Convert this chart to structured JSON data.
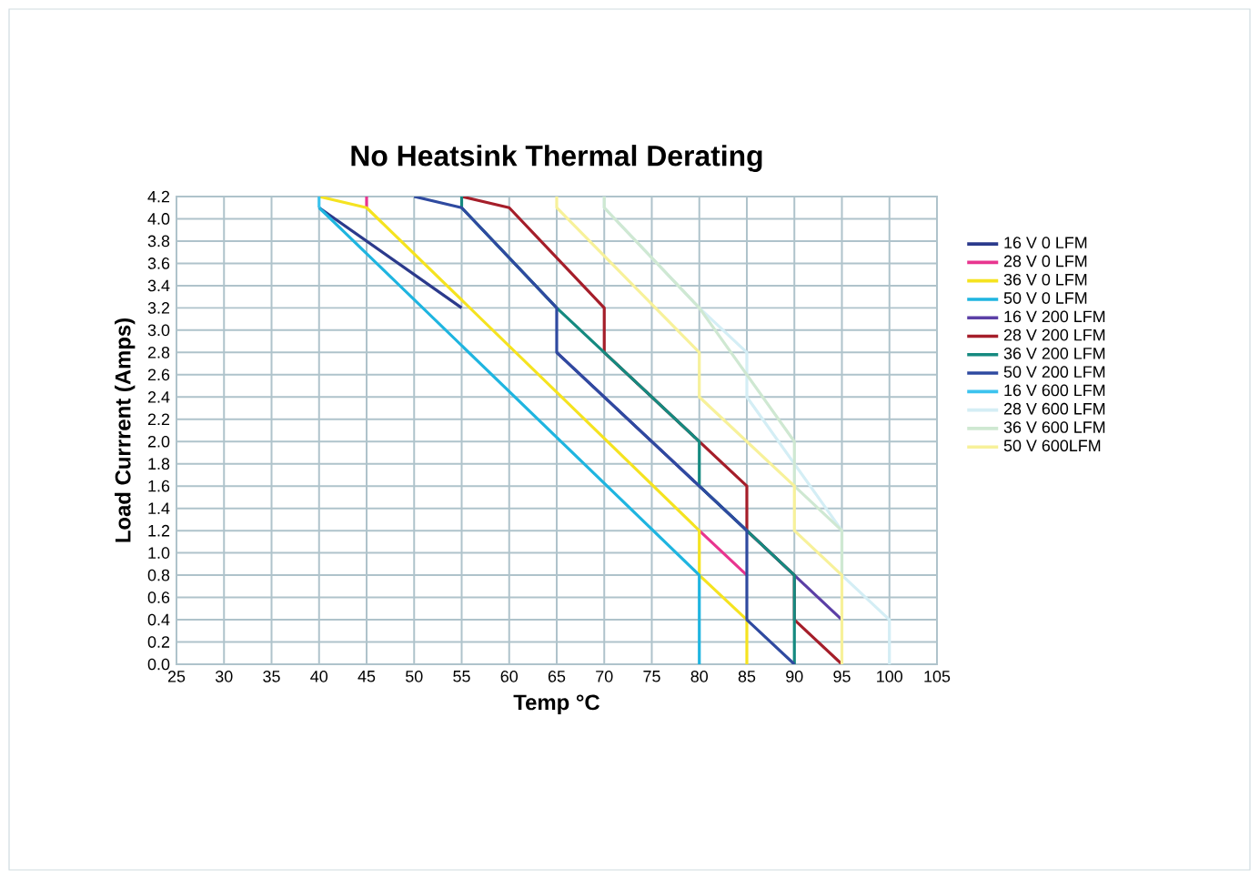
{
  "chart_data": {
    "type": "line",
    "title": "No Heatsink Thermal Derating",
    "xlabel": "Temp °C",
    "ylabel": "Load Currrent (Amps)",
    "xlim": [
      25,
      105
    ],
    "xticks": [
      25,
      30,
      35,
      40,
      45,
      50,
      55,
      60,
      65,
      70,
      75,
      80,
      85,
      90,
      95,
      100,
      105
    ],
    "ylim": [
      0,
      4.2
    ],
    "yticks": [
      {
        "value": 0,
        "label": "0.0"
      },
      0.2,
      0.4,
      0.6,
      0.8,
      {
        "value": 1,
        "label": "1.0"
      },
      1.2,
      1.4,
      1.6,
      1.8,
      {
        "value": 2,
        "label": "2.0"
      },
      2.2,
      2.4,
      2.6,
      2.8,
      {
        "value": 3,
        "label": "3.0"
      },
      3.2,
      3.4,
      3.6,
      3.8,
      {
        "value": 4,
        "label": "4.0"
      },
      4.2
    ],
    "grid": true,
    "legend": "right",
    "marker": "none",
    "line_style": "solid",
    "series": [
      {
        "name": "16 V 0 LFM",
        "color": "#2b3a8c",
        "x": [
          40,
          55
        ],
        "values": [
          4.1,
          3.2
        ]
      },
      {
        "name": "28 V 0 LFM",
        "color": "#e8358f",
        "x": [
          45,
          45,
          60,
          80,
          85
        ],
        "values": [
          4.2,
          4.1,
          null,
          1.2,
          0.8
        ]
      },
      {
        "name": "36 V 0 LFM",
        "color": "#f5e320",
        "x": [
          40,
          45,
          80,
          80,
          85,
          85
        ],
        "values": [
          4.2,
          4.1,
          1.2,
          0.8,
          0.4,
          0
        ]
      },
      {
        "name": "50 V 0 LFM",
        "color": "#1fb5e0",
        "x": [
          40,
          80,
          80
        ],
        "values": [
          4.1,
          0.8,
          0
        ]
      },
      {
        "name": "16 V 200 LFM",
        "color": "#5b3fa6",
        "x": [
          65,
          85,
          90,
          95
        ],
        "values": [
          2.8,
          1.2,
          0.8,
          0.4
        ]
      },
      {
        "name": "28 V 200 LFM",
        "color": "#a51e2a",
        "x": [
          55,
          60,
          70,
          70,
          80,
          85,
          85,
          90,
          90,
          95
        ],
        "values": [
          4.2,
          4.1,
          3.2,
          2.8,
          2.0,
          1.6,
          1.2,
          0.8,
          0.4,
          0
        ]
      },
      {
        "name": "36 V 200 LFM",
        "color": "#158a80",
        "x": [
          55,
          55,
          65,
          80,
          80,
          85,
          90,
          90
        ],
        "values": [
          4.2,
          4.1,
          3.2,
          2.0,
          1.6,
          1.2,
          0.8,
          0
        ]
      },
      {
        "name": "50 V 200 LFM",
        "color": "#2f4aa0",
        "x": [
          50,
          55,
          65,
          65,
          85,
          85,
          90
        ],
        "values": [
          4.2,
          4.1,
          3.2,
          2.8,
          1.2,
          0.4,
          0
        ]
      },
      {
        "name": "16 V 600 LFM",
        "color": "#3cc3ee",
        "x": [
          40,
          40
        ],
        "values": [
          4.2,
          4.1
        ]
      },
      {
        "name": "28 V 600 LFM",
        "color": "#d4eef5",
        "x": [
          70,
          70,
          80,
          85,
          85,
          95,
          95,
          100,
          100
        ],
        "values": [
          4.2,
          4.1,
          3.2,
          2.8,
          2.4,
          1.2,
          0.8,
          0.4,
          0
        ]
      },
      {
        "name": "36 V 600 LFM",
        "color": "#cfe8d2",
        "x": [
          70,
          70,
          80,
          90,
          90,
          95,
          95
        ],
        "values": [
          4.2,
          4.1,
          3.2,
          2.0,
          1.6,
          1.2,
          0.8
        ]
      },
      {
        "name": "50 V 600LFM",
        "color": "#f7f19a",
        "x": [
          65,
          65,
          80,
          80,
          90,
          90,
          95,
          95
        ],
        "values": [
          4.2,
          4.1,
          2.8,
          2.4,
          1.6,
          1.2,
          0.8,
          0
        ]
      }
    ]
  }
}
